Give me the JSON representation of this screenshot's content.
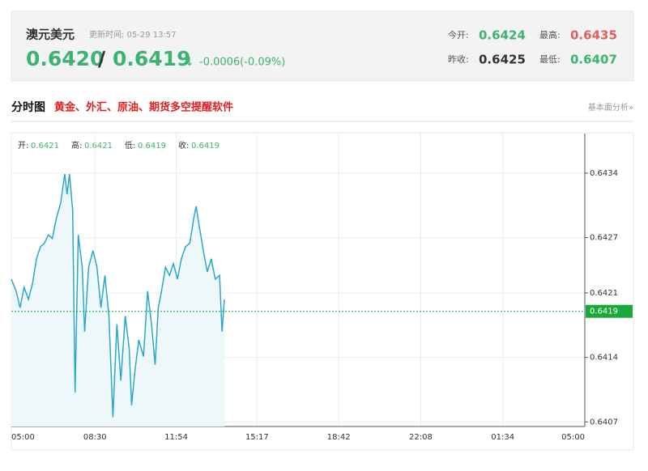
{
  "header": {
    "name": "澳元美元",
    "update_time": "更新时间: 05-29 13:57",
    "price": "0.6420",
    "separator": "/",
    "price_alt": "0.6419",
    "direction": "↓",
    "change": "-0.0006(-0.09%)",
    "stats": [
      {
        "label": "今开:",
        "value": "0.6424"
      },
      {
        "label": "最高:",
        "value": "0.6435"
      },
      {
        "label": "昨收:",
        "value": "0.6425"
      },
      {
        "label": "最低:",
        "value": "0.6407"
      }
    ]
  },
  "section": {
    "title": "分时图",
    "promo": "黄金、外汇、原油、期货多空提醒软件",
    "link": "基本面分析»"
  },
  "chart_data": {
    "type": "line",
    "ohlc": [
      {
        "label": "开:",
        "value": "0.6421"
      },
      {
        "label": "高:",
        "value": "0.6421"
      },
      {
        "label": "低:",
        "value": "0.6419"
      },
      {
        "label": "收:",
        "value": "0.6419"
      }
    ],
    "x": [
      0,
      12,
      22,
      32,
      43,
      53,
      63,
      73,
      83,
      93,
      103,
      113,
      124,
      134,
      140,
      146,
      154,
      160,
      168,
      178,
      184,
      194,
      205,
      215,
      225,
      235,
      245,
      255,
      265,
      275,
      286,
      296,
      302,
      310,
      320,
      332,
      342,
      352,
      361,
      369,
      377,
      387,
      397,
      407,
      417,
      427,
      437,
      448,
      458,
      464,
      472,
      482,
      492,
      502,
      512,
      523,
      529,
      535
    ],
    "values": [
      0.64225,
      0.64212,
      0.64194,
      0.64216,
      0.64203,
      0.6422,
      0.64247,
      0.6426,
      0.64264,
      0.64273,
      0.64269,
      0.64291,
      0.64308,
      0.64339,
      0.64317,
      0.64339,
      0.643,
      0.64102,
      0.64273,
      0.64238,
      0.64168,
      0.64238,
      0.64256,
      0.64238,
      0.64194,
      0.64229,
      0.64185,
      0.64075,
      0.64176,
      0.64115,
      0.64185,
      0.6415,
      0.64088,
      0.64124,
      0.64159,
      0.64141,
      0.64212,
      0.64176,
      0.64132,
      0.64194,
      0.64212,
      0.64238,
      0.64229,
      0.64242,
      0.64225,
      0.64247,
      0.6426,
      0.64264,
      0.64291,
      0.64304,
      0.64282,
      0.64256,
      0.64233,
      0.64247,
      0.64225,
      0.64229,
      0.64168,
      0.64203
    ],
    "color": "#2aa7cc",
    "area_color": "#eef8fb",
    "xlim": [
      0,
      1440
    ],
    "xticks": [
      {
        "value": 0,
        "label": "05:00"
      },
      {
        "value": 210,
        "label": "08:30"
      },
      {
        "value": 414,
        "label": "11:54"
      },
      {
        "value": 617,
        "label": "15:17"
      },
      {
        "value": 822,
        "label": "18:42"
      },
      {
        "value": 1028,
        "label": "22:08"
      },
      {
        "value": 1234,
        "label": "01:34"
      },
      {
        "value": 1440,
        "label": "05:00"
      }
    ],
    "ylim": [
      0.64065,
      0.64383
    ],
    "yticks": [
      0.6407,
      0.6414,
      0.6421,
      0.6427,
      0.6434
    ],
    "last_price": 0.6419,
    "last_price_color": "#1aa83a",
    "grid": true
  }
}
